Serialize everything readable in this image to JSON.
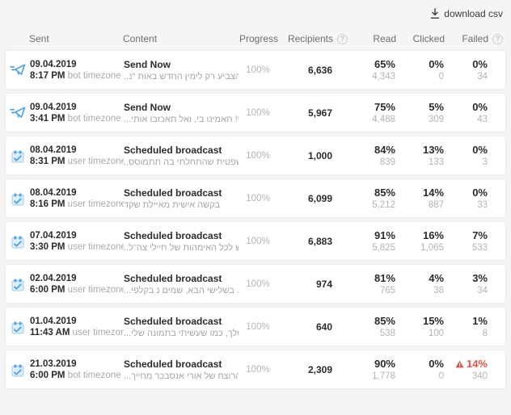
{
  "toolbar": {
    "download_label": "download csv"
  },
  "colors": {
    "background": "#f5f5f6",
    "card": "#ffffff",
    "text_primary": "#2b2b2b",
    "text_secondary": "#a9a9a9",
    "header_text": "#6e6e6e",
    "accent_blue": "#4aa0e6",
    "warning_red": "#e0564a"
  },
  "icons": {
    "download": "download-arrow",
    "help": "question-circle",
    "send_now": "paper-plane",
    "scheduled": "calendar-check",
    "failed_warning": "warning-triangle"
  },
  "table": {
    "headers": {
      "sent": "Sent",
      "content": "Content",
      "progress": "Progress",
      "recipients": "Recipients",
      "read": "Read",
      "clicked": "Clicked",
      "failed": "Failed"
    },
    "rows": [
      {
        "type": "send",
        "date": "09.04.2019",
        "time": "8:17 PM",
        "timezone": "bot timezone",
        "content_title": "Send Now",
        "content_preview": "..כו להצביע רק לימין החדש באות \"נ",
        "progress": "100%",
        "recipients": "6,636",
        "read_pct": "65%",
        "read_count": "4,343",
        "clicked_pct": "0%",
        "clicked_count": "0",
        "failed_pct": "0%",
        "failed_count": "34",
        "failed_warning": false
      },
      {
        "type": "send",
        "date": "09.04.2019",
        "time": "3:41 PM",
        "timezone": "bot timezone",
        "content_title": "Send Now",
        "content_preview": "...ממש! תאמינו בי, ואל תאכזבו אותי",
        "progress": "100%",
        "recipients": "5,967",
        "read_pct": "75%",
        "read_count": "4,488",
        "clicked_pct": "5%",
        "clicked_count": "309",
        "failed_pct": "0%",
        "failed_count": "43",
        "failed_warning": false
      },
      {
        "type": "scheduled",
        "date": "08.04.2019",
        "time": "8:31 PM",
        "timezone": "user timezone",
        "content_title": "Scheduled broadcast",
        "content_preview": "..המשפטית שהתחלתי בה תתמוסס",
        "progress": "100%",
        "recipients": "1,000",
        "read_pct": "84%",
        "read_count": "839",
        "clicked_pct": "13%",
        "clicked_count": "133",
        "failed_pct": "0%",
        "failed_count": "3",
        "failed_warning": false
      },
      {
        "type": "scheduled",
        "date": "08.04.2019",
        "time": "8:16 PM",
        "timezone": "user timezone",
        "content_title": "Scheduled broadcast",
        "content_preview": "בקשה אישית מאיילת שקד",
        "progress": "100%",
        "recipients": "6,099",
        "read_pct": "85%",
        "read_count": "5,212",
        "clicked_pct": "14%",
        "clicked_count": "887",
        "failed_pct": "0%",
        "failed_count": "33",
        "failed_warning": false
      },
      {
        "type": "scheduled",
        "date": "07.04.2019",
        "time": "3:30 PM",
        "timezone": "user timezone",
        "content_title": "Scheduled broadcast",
        "content_preview": "..קדש לכל האימהות של חיילי צה\"ל",
        "progress": "100%",
        "recipients": "6,883",
        "read_pct": "91%",
        "read_count": "5,825",
        "clicked_pct": "16%",
        "clicked_count": "1,065",
        "failed_pct": "7%",
        "failed_count": "533",
        "failed_warning": false
      },
      {
        "type": "scheduled",
        "date": "02.04.2019",
        "time": "6:00 PM",
        "timezone": "user timezone",
        "content_title": "Scheduled broadcast",
        "content_preview": "...ונות. בשלישי הבא, שמים נ בקלפי",
        "progress": "100%",
        "recipients": "974",
        "read_pct": "81%",
        "read_count": "765",
        "clicked_pct": "4%",
        "clicked_count": "38",
        "failed_pct": "3%",
        "failed_count": "34",
        "failed_warning": false
      },
      {
        "type": "scheduled",
        "date": "01.04.2019",
        "time": "11:43 AM",
        "timezone": "user timezone",
        "content_title": "Scheduled broadcast",
        "content_preview": "...יל שלך, כמו שעשיתי בתמונה שלי",
        "progress": "100%",
        "recipients": "640",
        "read_pct": "85%",
        "read_count": "538",
        "clicked_pct": "15%",
        "clicked_count": "100",
        "failed_pct": "1%",
        "failed_count": "8",
        "failed_warning": false
      },
      {
        "type": "scheduled",
        "date": "21.03.2019",
        "time": "6:00 PM",
        "timezone": "bot timezone",
        "content_title": "Scheduled broadcast",
        "content_preview": "...תך הרוצח של אורי אנסבכר מחייך",
        "progress": "100%",
        "recipients": "2,309",
        "read_pct": "90%",
        "read_count": "1,778",
        "clicked_pct": "0%",
        "clicked_count": "0",
        "failed_pct": "14%",
        "failed_count": "340",
        "failed_warning": true
      }
    ]
  }
}
